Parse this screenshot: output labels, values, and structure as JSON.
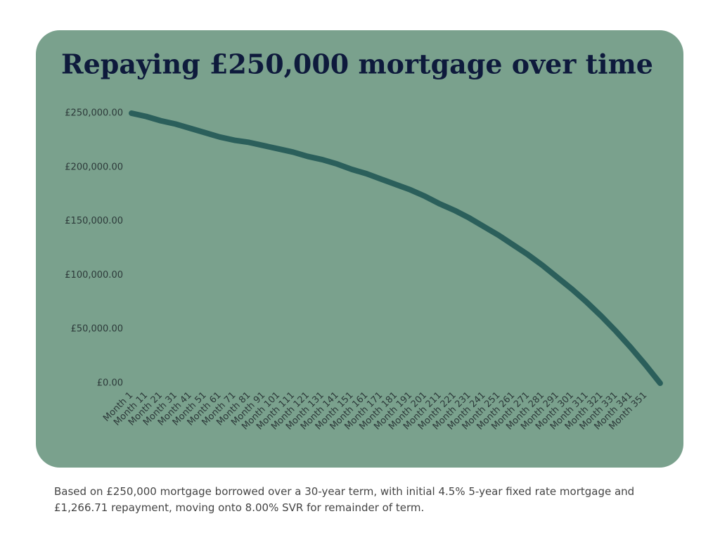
{
  "chart_data": {
    "type": "line",
    "title": "Repaying £250,000 mortgage over time",
    "caption": "Based on £250,000 mortgage borrowed over a 30-year term, with initial 4.5% 5-year fixed rate mortgage and £1,266.71 repayment, moving onto 8.00% SVR for remainder of term.",
    "categories": [
      "Month 1",
      "Month 11",
      "Month 21",
      "Month 31",
      "Month 41",
      "Month 51",
      "Month 61",
      "Month 71",
      "Month 81",
      "Month 91",
      "Month 101",
      "Month 111",
      "Month 121",
      "Month 131",
      "Month 141",
      "Month 151",
      "Month 161",
      "Month 171",
      "Month 181",
      "Month 191",
      "Month 201",
      "Month 211",
      "Month 221",
      "Month 231",
      "Month 241",
      "Month 251",
      "Month 261",
      "Month 271",
      "Month 281",
      "Month 291",
      "Month 301",
      "Month 311",
      "Month 321",
      "Month 331",
      "Month 341",
      "Month 351",
      null
    ],
    "series": [
      {
        "color": "#2b5f5b",
        "values": [
          250000,
          247000,
          243000,
          240000,
          236000,
          232000,
          228000,
          225000,
          223000,
          220000,
          217000,
          214000,
          210000,
          207000,
          203000,
          198000,
          194000,
          189000,
          184000,
          179000,
          173000,
          166000,
          160000,
          153000,
          145000,
          137000,
          128000,
          119000,
          109000,
          98000,
          87000,
          75000,
          62000,
          48000,
          33000,
          17000,
          0
        ]
      }
    ],
    "ylim": [
      0,
      250000
    ],
    "yticks": [
      {
        "value": 0,
        "label": "£0.00"
      },
      {
        "value": 50000,
        "label": "£50,000.00"
      },
      {
        "value": 100000,
        "label": "£100,000.00"
      },
      {
        "value": 150000,
        "label": "£150,000.00"
      },
      {
        "value": 200000,
        "label": "£200,000.00"
      },
      {
        "value": 250000,
        "label": "£250,000.00"
      }
    ],
    "grid": false
  }
}
